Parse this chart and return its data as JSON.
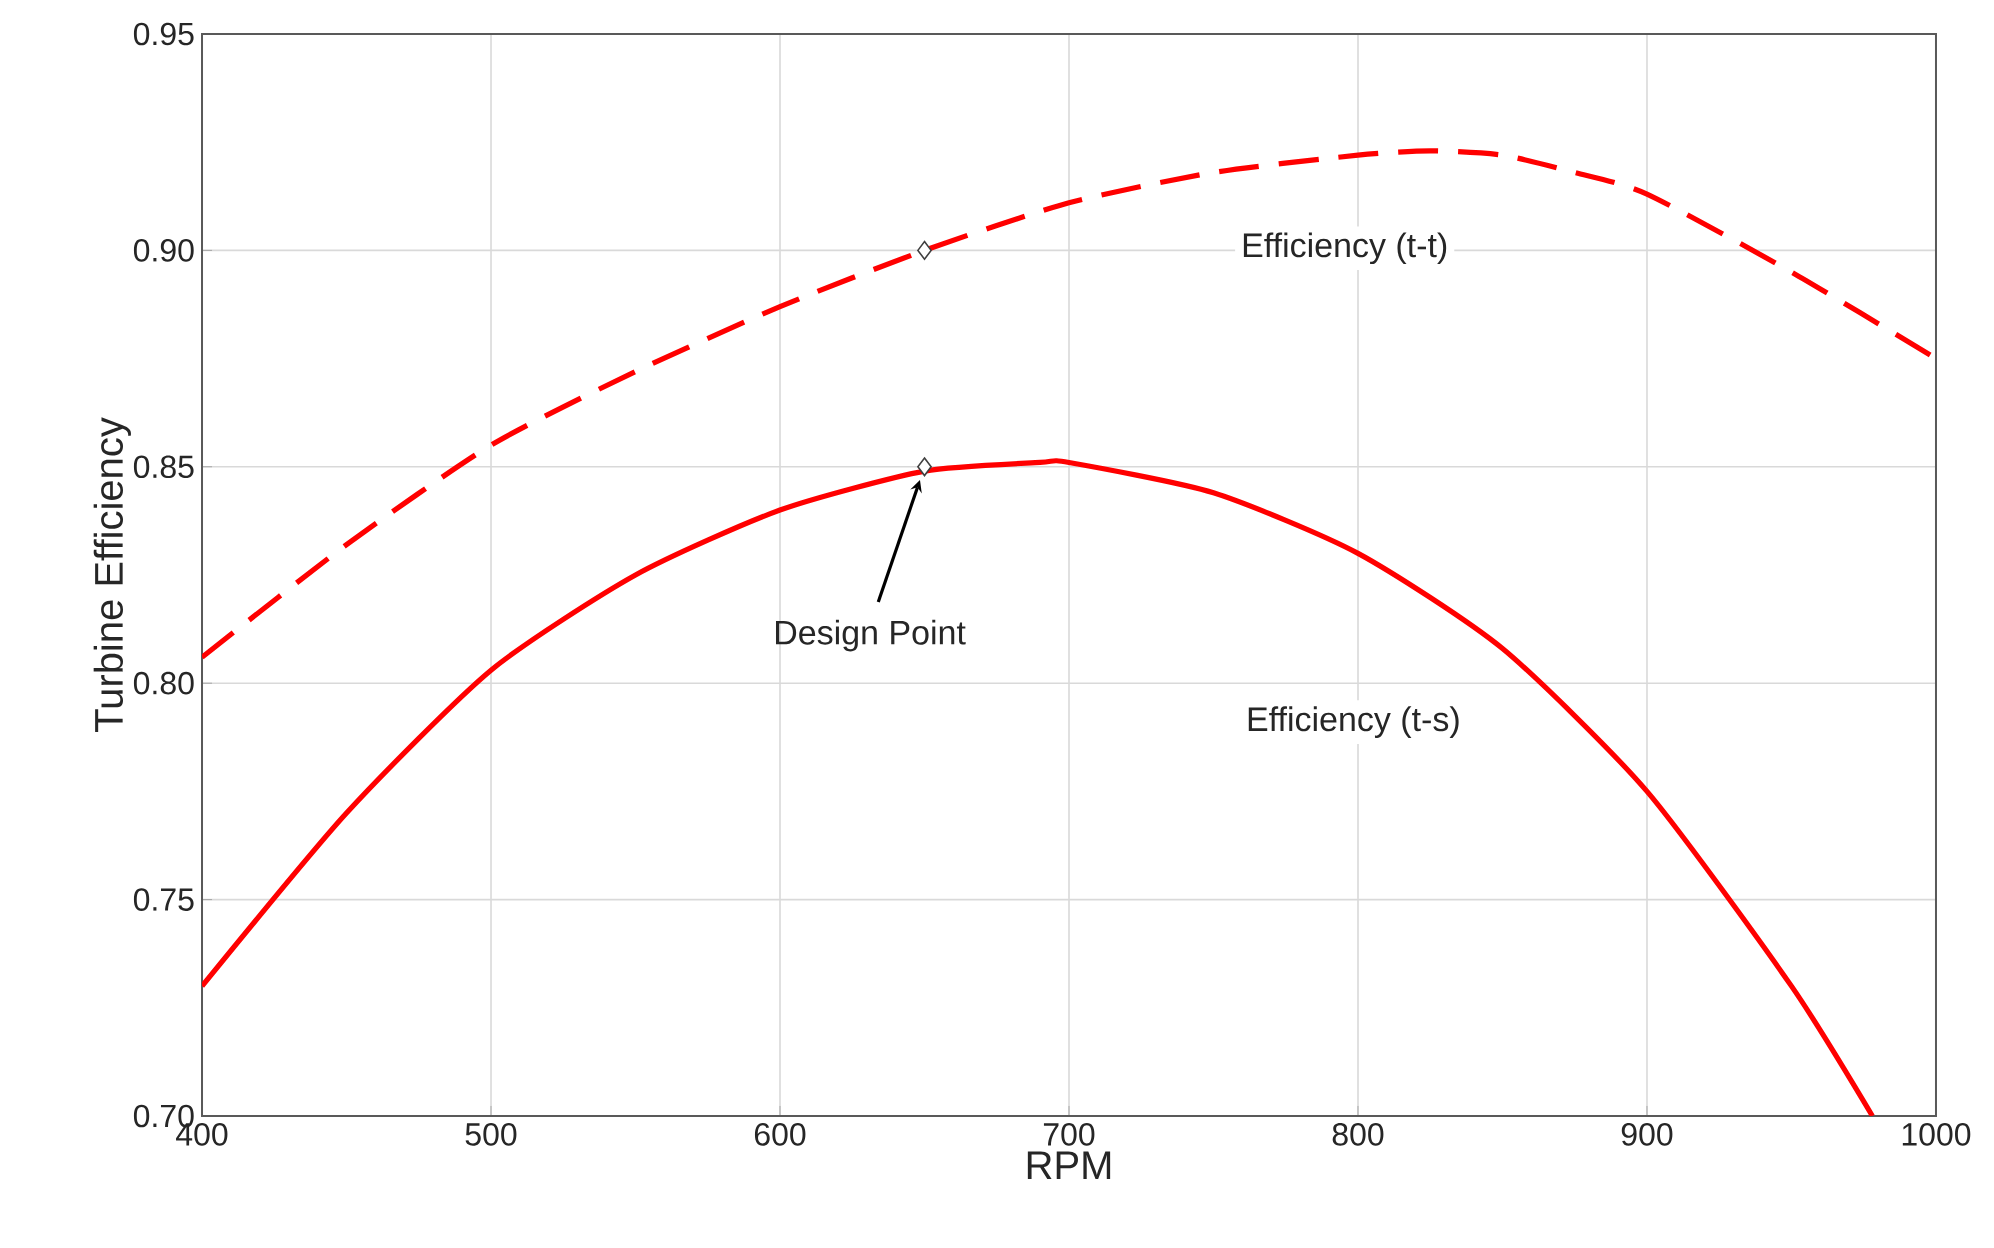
{
  "chart_data": {
    "type": "line",
    "xlabel": "RPM",
    "ylabel": "Turbine Efficiency",
    "xlim": [
      400,
      1000
    ],
    "xticks": [
      400,
      500,
      600,
      700,
      800,
      900,
      1000
    ],
    "ylim": [
      0.7,
      0.95
    ],
    "yticks": [
      {
        "value": 0.7,
        "label": "0.70"
      },
      {
        "value": 0.75,
        "label": "0.75"
      },
      {
        "value": 0.8,
        "label": "0.80"
      },
      {
        "value": 0.85,
        "label": "0.85"
      },
      {
        "value": 0.9,
        "label": "0.90"
      },
      {
        "value": 0.95,
        "label": "0.95"
      }
    ],
    "grid": true,
    "marker": "none",
    "series": [
      {
        "name": "Efficiency (t-t)",
        "color": "#ff0000",
        "line_style": "dashed",
        "x": [
          400,
          450,
          500,
          550,
          600,
          650,
          700,
          750,
          800,
          825,
          850,
          875,
          900,
          950,
          1000
        ],
        "values": [
          0.806,
          0.832,
          0.855,
          0.872,
          0.887,
          0.9,
          0.911,
          0.918,
          0.922,
          0.923,
          0.922,
          0.918,
          0.913,
          0.895,
          0.875
        ]
      },
      {
        "name": "Efficiency (t-s)",
        "color": "#ff0000",
        "line_style": "solid",
        "x": [
          400,
          450,
          500,
          550,
          600,
          650,
          690,
          700,
          750,
          800,
          850,
          900,
          950,
          978
        ],
        "values": [
          0.73,
          0.77,
          0.803,
          0.825,
          0.84,
          0.849,
          0.851,
          0.851,
          0.844,
          0.83,
          0.808,
          0.775,
          0.73,
          0.7
        ]
      },
      {
        "type": "scatter",
        "marker": "diamond",
        "color": "#404040",
        "x": [
          650,
          650
        ],
        "values": [
          0.9,
          0.85
        ]
      }
    ],
    "annotations": [
      "Design Point"
    ]
  }
}
